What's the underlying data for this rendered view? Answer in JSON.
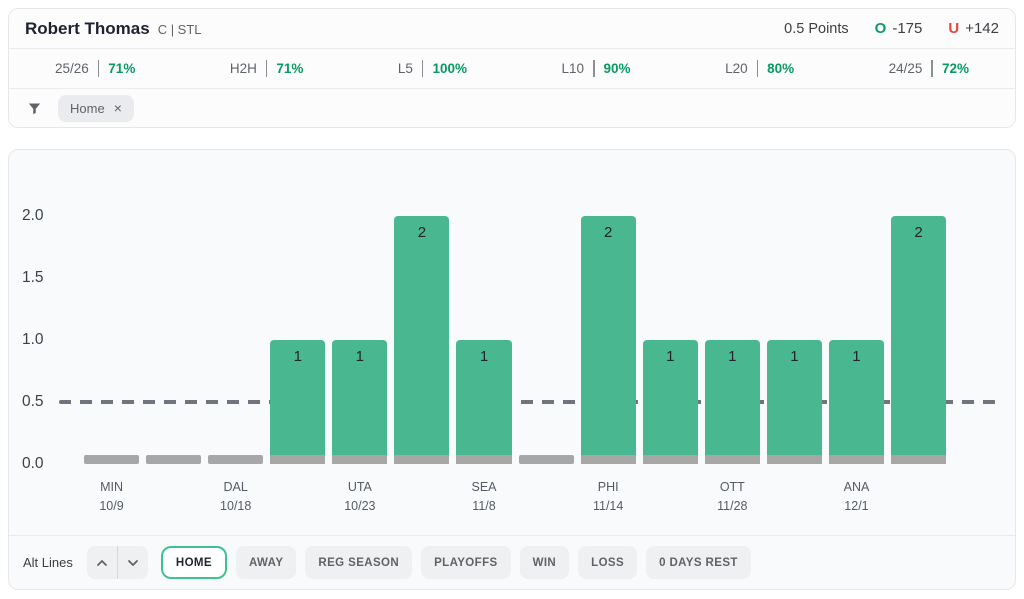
{
  "header": {
    "player_name": "Robert Thomas",
    "player_meta": "C | STL",
    "line_label": "0.5 Points",
    "over_letter": "O",
    "over_odds": "-175",
    "under_letter": "U",
    "under_odds": "+142"
  },
  "stats": [
    {
      "label": "25/26",
      "value": "71%"
    },
    {
      "label": "H2H",
      "value": "71%"
    },
    {
      "label": "L5",
      "value": "100%"
    },
    {
      "label": "L10",
      "value": "90%"
    },
    {
      "label": "L20",
      "value": "80%"
    },
    {
      "label": "24/25",
      "value": "72%"
    }
  ],
  "filter": {
    "chip_label": "Home",
    "chip_close": "×"
  },
  "chart_data": {
    "type": "bar",
    "title": "",
    "xlabel": "",
    "ylabel": "",
    "values": [
      0,
      0,
      0,
      1,
      1,
      2,
      1,
      0,
      2,
      1,
      1,
      1,
      1,
      2
    ],
    "x_tick_labels": [
      {
        "index": 0,
        "team": "MIN",
        "date": "10/9"
      },
      {
        "index": 2,
        "team": "DAL",
        "date": "10/18"
      },
      {
        "index": 4,
        "team": "UTA",
        "date": "10/23"
      },
      {
        "index": 6,
        "team": "SEA",
        "date": "11/8"
      },
      {
        "index": 8,
        "team": "PHI",
        "date": "11/14"
      },
      {
        "index": 10,
        "team": "OTT",
        "date": "11/28"
      },
      {
        "index": 12,
        "team": "ANA",
        "date": "12/1"
      }
    ],
    "y_ticks": [
      "2.0",
      "1.5",
      "1.0",
      "0.5",
      "0.0"
    ],
    "ylim": [
      0,
      2
    ],
    "threshold": 0.5,
    "threshold_style": "dashed",
    "grid": false,
    "legend": false,
    "colors": {
      "bar": "#49b78f",
      "zero_stub": "#a7a7a7",
      "threshold_line": "#70757d"
    }
  },
  "controls": {
    "alt_lines_label": "Alt Lines",
    "buttons": [
      {
        "label": "HOME",
        "active": true
      },
      {
        "label": "AWAY",
        "active": false
      },
      {
        "label": "REG SEASON",
        "active": false
      },
      {
        "label": "PLAYOFFS",
        "active": false
      },
      {
        "label": "WIN",
        "active": false
      },
      {
        "label": "LOSS",
        "active": false
      },
      {
        "label": "0 DAYS REST",
        "active": false
      }
    ]
  }
}
